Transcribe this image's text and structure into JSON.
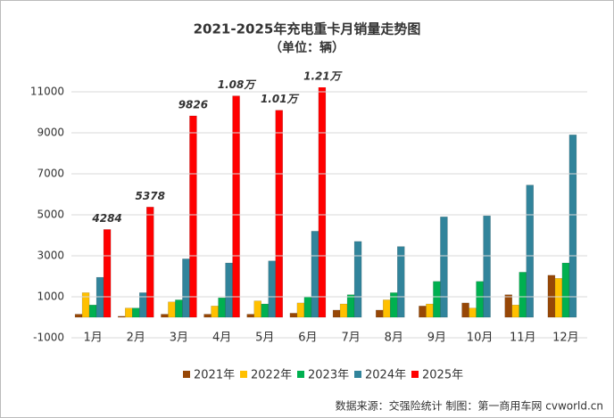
{
  "chart_data": {
    "type": "bar",
    "title": "2021-2025年充电重卡月销量走势图",
    "subtitle": "（单位：辆）",
    "source": "数据来源：交强险统计 制图：第一商用车网 cvworld.cn",
    "categories": [
      "1月",
      "2月",
      "3月",
      "4月",
      "5月",
      "6月",
      "7月",
      "8月",
      "9月",
      "10月",
      "11月",
      "12月"
    ],
    "series": [
      {
        "name": "2021年",
        "color": "#974706",
        "values": [
          150,
          50,
          150,
          150,
          150,
          200,
          350,
          350,
          550,
          700,
          1100,
          2050
        ]
      },
      {
        "name": "2022年",
        "color": "#FFC000",
        "values": [
          1200,
          450,
          750,
          550,
          800,
          700,
          650,
          850,
          650,
          450,
          600,
          1900
        ]
      },
      {
        "name": "2023年",
        "color": "#00B050",
        "values": [
          600,
          450,
          850,
          950,
          650,
          1000,
          1100,
          1200,
          1750,
          1750,
          2200,
          2650
        ]
      },
      {
        "name": "2024年",
        "color": "#31849B",
        "values": [
          1950,
          1200,
          2850,
          2650,
          2750,
          4200,
          3700,
          3450,
          4900,
          4950,
          6450,
          8900
        ]
      },
      {
        "name": "2025年",
        "color": "#FF0000",
        "values": [
          4284,
          5378,
          9826,
          10800,
          10100,
          12100,
          null,
          null,
          null,
          null,
          null,
          null
        ],
        "value_labels": [
          "4284",
          "5378",
          "9826",
          "1.08万",
          "1.01万",
          "1.21万",
          null,
          null,
          null,
          null,
          null,
          null
        ]
      }
    ],
    "ylim": [
      -1000,
      11000
    ],
    "yticks": [
      -1000,
      1000,
      3000,
      5000,
      7000,
      9000,
      11000
    ],
    "grid": true,
    "legend": "bottom"
  }
}
